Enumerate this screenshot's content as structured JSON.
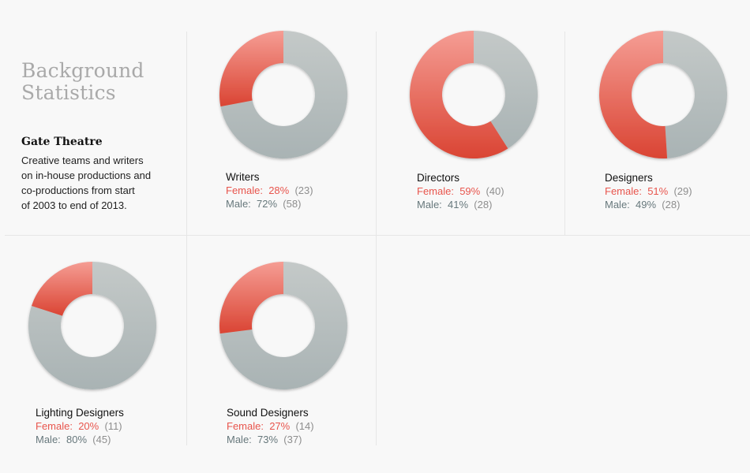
{
  "heading": {
    "title_line1": "Background",
    "title_line2": "Statistics",
    "org": "Gate Theatre",
    "desc_lines": [
      "Creative teams and writers",
      "on in-house productions and",
      "co-productions from start",
      "of 2003 to end of 2013."
    ]
  },
  "colors": {
    "female": "#e8554d",
    "male": "#b6bfc0"
  },
  "chart_data": [
    {
      "type": "pie",
      "name": "Writers",
      "labels": [
        "Female",
        "Male"
      ],
      "values_pct": [
        28,
        72
      ],
      "counts": [
        23,
        58
      ]
    },
    {
      "type": "pie",
      "name": "Directors",
      "labels": [
        "Female",
        "Male"
      ],
      "values_pct": [
        59,
        41
      ],
      "counts": [
        40,
        28
      ]
    },
    {
      "type": "pie",
      "name": "Designers",
      "labels": [
        "Female",
        "Male"
      ],
      "values_pct": [
        51,
        49
      ],
      "counts": [
        29,
        28
      ]
    },
    {
      "type": "pie",
      "name": "Lighting Designers",
      "labels": [
        "Female",
        "Male"
      ],
      "values_pct": [
        20,
        80
      ],
      "counts": [
        11,
        45
      ]
    },
    {
      "type": "pie",
      "name": "Sound Designers",
      "labels": [
        "Female",
        "Male"
      ],
      "values_pct": [
        27,
        73
      ],
      "counts": [
        14,
        37
      ]
    }
  ],
  "captions": [
    {
      "name": "Writers",
      "female_label": "Female:",
      "female_pct": "28%",
      "female_count": "(23)",
      "male_label": "Male:",
      "male_pct": "72%",
      "male_count": "(58)"
    },
    {
      "name": "Directors",
      "female_label": "Female:",
      "female_pct": "59%",
      "female_count": "(40)",
      "male_label": "Male:",
      "male_pct": "41%",
      "male_count": "(28)"
    },
    {
      "name": "Designers",
      "female_label": "Female:",
      "female_pct": "51%",
      "female_count": "(29)",
      "male_label": "Male:",
      "male_pct": "49%",
      "male_count": "(28)"
    },
    {
      "name": "Lighting Designers",
      "female_label": "Female:",
      "female_pct": "20%",
      "female_count": "(11)",
      "male_label": "Male:",
      "male_pct": "80%",
      "male_count": "(45)"
    },
    {
      "name": "Sound Designers",
      "female_label": "Female:",
      "female_pct": "27%",
      "female_count": "(14)",
      "male_label": "Male:",
      "male_pct": "73%",
      "male_count": "(37)"
    }
  ]
}
